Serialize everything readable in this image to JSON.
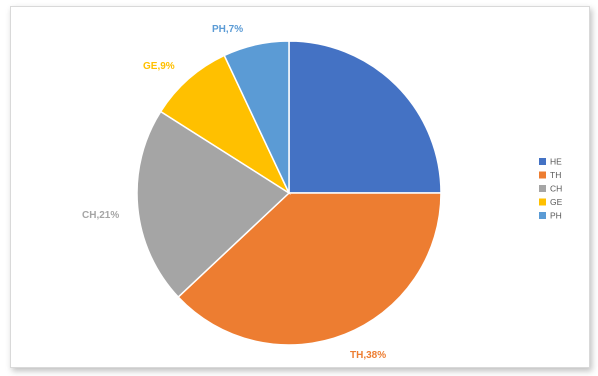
{
  "chart_data": {
    "type": "pie",
    "title": "",
    "categories": [
      "HE",
      "TH",
      "CH",
      "GE",
      "PH"
    ],
    "values": [
      25,
      38,
      21,
      9,
      7
    ],
    "labels": [
      "",
      "TH,38%",
      "CH,21%",
      "GE,9%",
      "PH,7%"
    ],
    "colors": [
      "#4472C4",
      "#ED7D31",
      "#A5A5A5",
      "#FFC000",
      "#5B9BD5"
    ],
    "label_colors": [
      "#4472C4",
      "#ED7D31",
      "#A5A5A5",
      "#FFC000",
      "#5B9BD5"
    ],
    "start": "12 o'clock",
    "direction": "clockwise",
    "legend": {
      "position": "right",
      "entries": [
        "HE",
        "TH",
        "CH",
        "GE",
        "PH"
      ]
    }
  }
}
